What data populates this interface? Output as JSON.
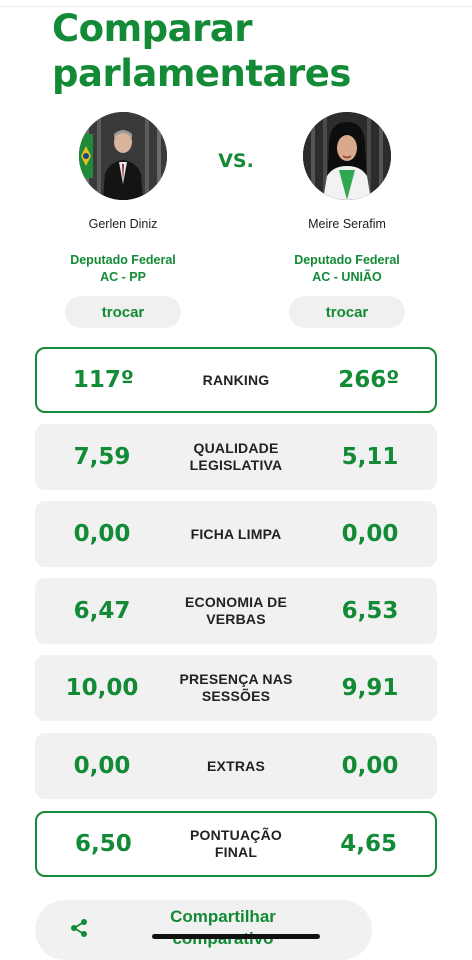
{
  "page": {
    "title_line1": "Comparar",
    "title_line2": "parlamentares",
    "vs_label": "VS.",
    "accent_color": "#138a36"
  },
  "left": {
    "name": "Gerlen Diniz",
    "role": "Deputado Federal",
    "state_party": "AC - PP",
    "swap_label": "trocar"
  },
  "right": {
    "name": "Meire Serafim",
    "role": "Deputado Federal",
    "state_party": "AC - UNIÃO",
    "swap_label": "trocar"
  },
  "metrics": [
    {
      "label_lines": [
        "RANKING"
      ],
      "left": "117º",
      "right": "266º",
      "highlight": true
    },
    {
      "label_lines": [
        "QUALIDADE",
        "LEGISLATIVA"
      ],
      "left": "7,59",
      "right": "5,11",
      "highlight": false
    },
    {
      "label_lines": [
        "FICHA LIMPA"
      ],
      "left": "0,00",
      "right": "0,00",
      "highlight": false
    },
    {
      "label_lines": [
        "ECONOMIA DE",
        "VERBAS"
      ],
      "left": "6,47",
      "right": "6,53",
      "highlight": false
    },
    {
      "label_lines": [
        "PRESENÇA NAS",
        "SESSÕES"
      ],
      "left": "10,00",
      "right": "9,91",
      "highlight": false
    },
    {
      "label_lines": [
        "EXTRAS"
      ],
      "left": "0,00",
      "right": "0,00",
      "highlight": false
    },
    {
      "label_lines": [
        "PONTUAÇÃO",
        "FINAL"
      ],
      "left": "6,50",
      "right": "4,65",
      "highlight": true
    }
  ],
  "share": {
    "label_line1": "Compartilhar",
    "label_line2": "comparativo",
    "icon": "share-icon"
  }
}
